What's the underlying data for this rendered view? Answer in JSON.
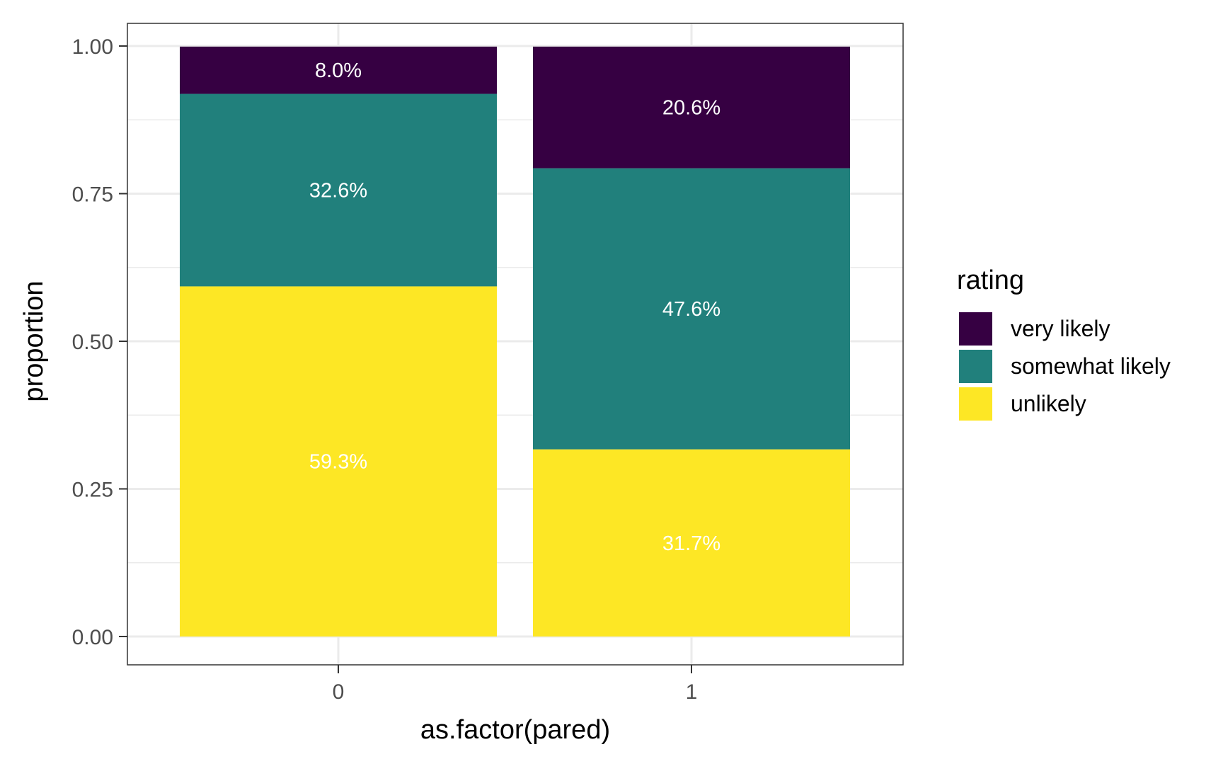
{
  "chart_data": {
    "type": "bar",
    "stacked": true,
    "xlabel": "as.factor(pared)",
    "ylabel": "proportion",
    "categories": [
      "0",
      "1"
    ],
    "ylim": [
      0,
      1
    ],
    "yticks": [
      0.0,
      0.25,
      0.5,
      0.75,
      1.0
    ],
    "ytick_labels": [
      "0.00",
      "0.25",
      "0.50",
      "0.75",
      "1.00"
    ],
    "grid": true,
    "legend": {
      "title": "rating",
      "position": "right"
    },
    "series": [
      {
        "name": "unlikely",
        "color": "#FDE725",
        "values": [
          0.593,
          0.317
        ],
        "labels": [
          "59.3%",
          "31.7%"
        ]
      },
      {
        "name": "somewhat likely",
        "color": "#21807C",
        "values": [
          0.326,
          0.476
        ],
        "labels": [
          "32.6%",
          "47.6%"
        ]
      },
      {
        "name": "very likely",
        "color": "#360042",
        "values": [
          0.08,
          0.206
        ],
        "labels": [
          "8.0%",
          "20.6%"
        ]
      }
    ],
    "legend_order": [
      "very likely",
      "somewhat likely",
      "unlikely"
    ]
  }
}
